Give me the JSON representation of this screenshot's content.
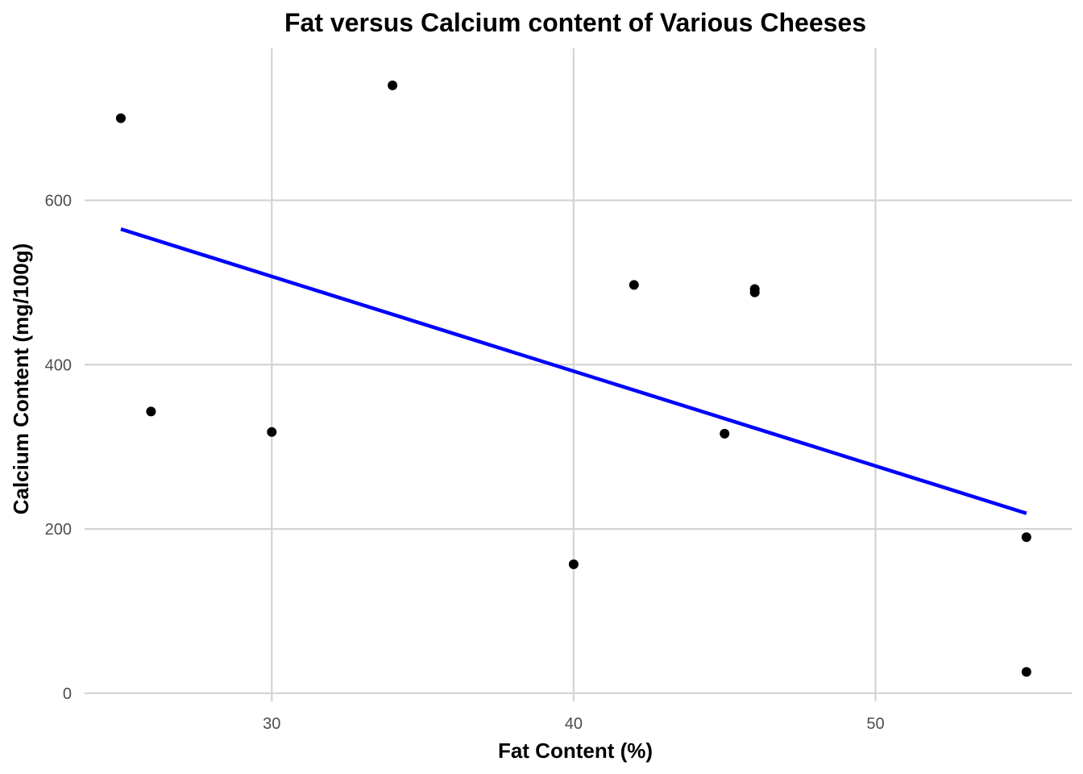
{
  "chart_data": {
    "type": "scatter",
    "title": "Fat versus Calcium content of Various Cheeses",
    "xlabel": "Fat Content (%)",
    "ylabel": "Calcium Content (mg/100g)",
    "x_ticks": [
      30,
      40,
      50
    ],
    "y_ticks": [
      0,
      200,
      400,
      600
    ],
    "xlim": [
      23.8,
      56.5
    ],
    "ylim": [
      -10,
      785
    ],
    "grid": true,
    "series": [
      {
        "points": [
          {
            "x": 25,
            "y": 700
          },
          {
            "x": 26,
            "y": 343
          },
          {
            "x": 30,
            "y": 318
          },
          {
            "x": 34,
            "y": 740
          },
          {
            "x": 40,
            "y": 157
          },
          {
            "x": 42,
            "y": 497
          },
          {
            "x": 45,
            "y": 316
          },
          {
            "x": 46,
            "y": 492
          },
          {
            "x": 46,
            "y": 488
          },
          {
            "x": 55,
            "y": 190
          },
          {
            "x": 55,
            "y": 26
          }
        ]
      }
    ],
    "trendline": {
      "type": "linear",
      "color": "#0000ff",
      "x": [
        25,
        55
      ],
      "y": [
        565,
        219
      ]
    },
    "point_color": "#000000",
    "grid_color": "#d3d3d3"
  }
}
